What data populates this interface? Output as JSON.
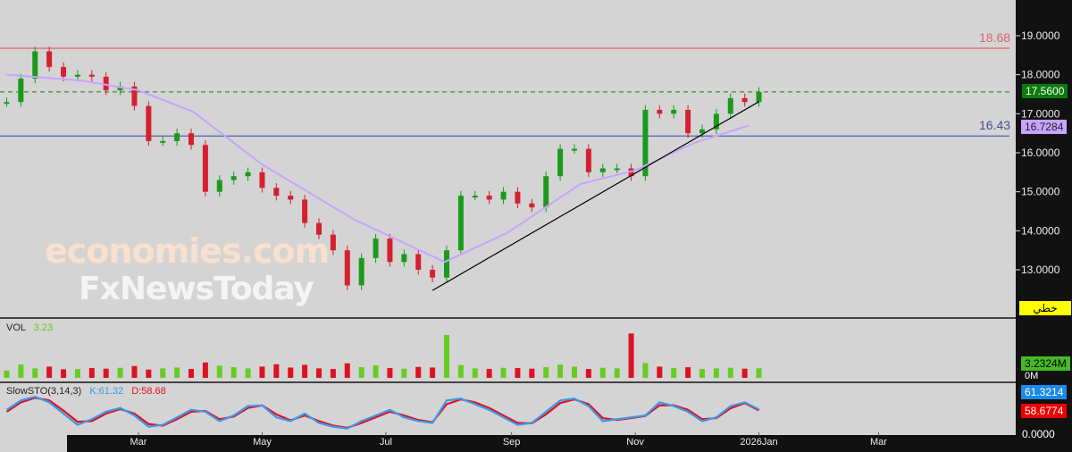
{
  "chart_data": {
    "type": "candlestick",
    "title": "",
    "price_axis": {
      "ticks": [
        "19.0000",
        "18.0000",
        "17.0000",
        "16.0000",
        "15.0000",
        "14.0000",
        "13.0000"
      ],
      "ylim": [
        12.0,
        19.8
      ]
    },
    "x_ticks": [
      {
        "label": "Mar",
        "date": "2025-03-01"
      },
      {
        "label": "May",
        "date": "2025-05-01"
      },
      {
        "label": "Jul",
        "date": "2025-07-01"
      },
      {
        "label": "Sep",
        "date": "2025-09-01"
      },
      {
        "label": "Nov",
        "date": "2025-11-01"
      },
      {
        "label": "2026Jan",
        "date": "2026-01-01"
      },
      {
        "label": "Mar",
        "date": "2026-03-01"
      }
    ],
    "start_date": "2024-12-26",
    "interval_days": 7,
    "closes": [
      17.3,
      17.9,
      18.6,
      18.2,
      17.95,
      18.0,
      17.95,
      17.6,
      17.7,
      17.2,
      16.3,
      16.3,
      16.5,
      16.2,
      15.0,
      15.3,
      15.4,
      15.5,
      15.1,
      14.9,
      14.8,
      14.2,
      13.9,
      13.5,
      12.6,
      13.3,
      13.8,
      13.2,
      13.4,
      13.0,
      12.8,
      13.5,
      14.9,
      14.9,
      14.8,
      15.0,
      14.7,
      14.6,
      15.4,
      16.1,
      16.1,
      15.5,
      15.6,
      15.6,
      15.4,
      17.1,
      17.0,
      17.1,
      16.5,
      16.6,
      17.0,
      17.4,
      17.3,
      17.56
    ],
    "moving_average": {
      "color": "#c7a4ff",
      "points": [
        [
          "2024-12-26",
          18.0
        ],
        [
          "2025-02-01",
          17.85
        ],
        [
          "2025-03-01",
          17.6
        ],
        [
          "2025-03-28",
          17.05
        ],
        [
          "2025-05-01",
          15.7
        ],
        [
          "2025-06-15",
          14.3
        ],
        [
          "2025-07-30",
          13.2
        ],
        [
          "2025-08-30",
          13.95
        ],
        [
          "2025-10-05",
          15.2
        ],
        [
          "2025-11-01",
          15.55
        ],
        [
          "2025-11-30",
          16.25
        ],
        [
          "2025-12-27",
          16.7
        ]
      ]
    },
    "trendline": {
      "color": "#000000",
      "from": [
        "2025-07-24",
        12.47
      ],
      "to": [
        "2026-01-01",
        17.31
      ]
    },
    "horizontal_lines": [
      {
        "value": 18.68,
        "label": "18.68",
        "color": "#e06070"
      },
      {
        "value": 16.43,
        "label": "16.43",
        "color": "#5060b0"
      },
      {
        "value": 17.56,
        "label": "",
        "color": "#207a20",
        "dashed": true
      }
    ],
    "last_price": {
      "label": "17.5600",
      "color": "#0a7a0a"
    },
    "ma_value": {
      "label": "16.7284",
      "color": "#c7a4ff"
    },
    "chart_type_badge": "خطي",
    "volume": {
      "name": "VOL",
      "value_label": "3.23",
      "axis_label": "3.2324M",
      "zero_label": "0M",
      "ymax": 16,
      "values": [
        2.5,
        4.5,
        3.2,
        3.8,
        2.9,
        3.0,
        3.3,
        3.1,
        3.4,
        4.0,
        2.8,
        3.2,
        3.5,
        3.0,
        5.2,
        4.1,
        3.6,
        3.2,
        3.8,
        4.6,
        3.5,
        4.4,
        3.2,
        3.0,
        4.9,
        3.6,
        4.2,
        3.3,
        3.1,
        3.7,
        3.5,
        14.5,
        4.3,
        3.2,
        3.0,
        3.4,
        3.3,
        3.1,
        3.6,
        4.5,
        3.8,
        3.0,
        3.4,
        3.2,
        15.0,
        5.0,
        3.8,
        3.3,
        3.6,
        3.0,
        3.2,
        3.4,
        3.1,
        3.23
      ]
    },
    "stochastic": {
      "name": "SlowSTO(3,14,3)",
      "k_label": "K:61.32",
      "d_label": "D:58.68",
      "k_axis": "61.3214",
      "d_axis": "58.6774",
      "zero_label": "0.0000",
      "k_color": "#3a9ae8",
      "d_color": "#e01020",
      "k": [
        60,
        85,
        95,
        80,
        50,
        20,
        35,
        55,
        65,
        45,
        15,
        20,
        40,
        60,
        55,
        30,
        45,
        70,
        72,
        40,
        30,
        50,
        25,
        15,
        10,
        30,
        45,
        60,
        40,
        30,
        25,
        85,
        90,
        75,
        60,
        40,
        20,
        25,
        55,
        85,
        90,
        70,
        30,
        35,
        40,
        45,
        80,
        70,
        55,
        30,
        40,
        70,
        80,
        61.32
      ],
      "d": [
        55,
        80,
        92,
        85,
        58,
        28,
        30,
        50,
        62,
        50,
        22,
        18,
        35,
        55,
        57,
        35,
        42,
        65,
        72,
        48,
        32,
        45,
        30,
        18,
        12,
        25,
        40,
        55,
        45,
        33,
        27,
        75,
        88,
        80,
        65,
        45,
        25,
        24,
        48,
        78,
        88,
        75,
        38,
        33,
        38,
        44,
        72,
        72,
        60,
        35,
        38,
        64,
        78,
        58.68
      ]
    }
  },
  "watermark": {
    "line1": "economies.com",
    "line2": "FxNewsToday"
  }
}
